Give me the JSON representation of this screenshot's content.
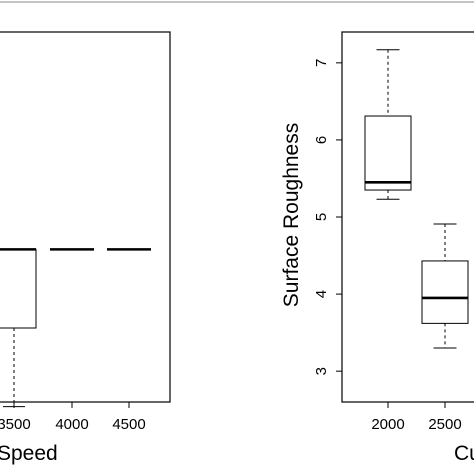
{
  "chart_data": [
    {
      "type": "box",
      "panel": "left",
      "title": "",
      "xlabel": "Speed",
      "ylabel": "",
      "categories": [
        "3500",
        "4000",
        "4500"
      ],
      "ylim": [
        3.3,
        7.3
      ],
      "boxes": [
        {
          "category": "3500",
          "min": 3.25,
          "q1": 4.1,
          "median": 4.95,
          "q3": 4.95,
          "max": 4.95
        },
        {
          "category": "4000",
          "min": 4.95,
          "q1": 4.95,
          "median": 4.95,
          "q3": 4.95,
          "max": 4.95
        },
        {
          "category": "4500",
          "min": 4.95,
          "q1": 4.95,
          "median": 4.95,
          "q3": 4.95,
          "max": 4.95
        }
      ],
      "grid": false,
      "legend": "none"
    },
    {
      "type": "box",
      "panel": "right",
      "title": "",
      "xlabel": "Cu",
      "ylabel": "Surface Roughness",
      "categories": [
        "2000",
        "2500"
      ],
      "yticks": [
        "3",
        "4",
        "5",
        "6",
        "7"
      ],
      "ylim": [
        2.6,
        7.4
      ],
      "boxes": [
        {
          "category": "2000",
          "min": 5.23,
          "q1": 5.35,
          "median": 5.45,
          "q3": 6.31,
          "max": 7.17
        },
        {
          "category": "2500",
          "min": 3.3,
          "q1": 3.62,
          "median": 3.95,
          "q3": 4.43,
          "max": 4.91
        }
      ],
      "grid": false,
      "legend": "none"
    }
  ]
}
